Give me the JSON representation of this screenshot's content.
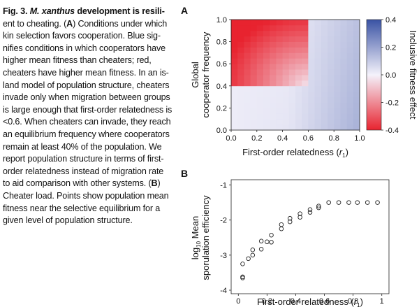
{
  "caption": {
    "fig_label": "Fig. 3.",
    "species": "M. xanthus",
    "lines": [
      [
        {
          "t": "Fig. 3. ",
          "s": "b"
        },
        {
          "t": "M. xanthus",
          "s": "bi"
        },
        {
          "t": " development is resili-",
          "s": "b"
        }
      ],
      [
        {
          "t": "ent to cheating. (",
          "s": ""
        },
        {
          "t": "A",
          "s": "b"
        },
        {
          "t": ") Conditions under which",
          "s": ""
        }
      ],
      [
        {
          "t": "kin selection favors cooperation. Blue sig-",
          "s": ""
        }
      ],
      [
        {
          "t": "nifies conditions in which cooperators have",
          "s": ""
        }
      ],
      [
        {
          "t": "higher mean fitness than cheaters; red,",
          "s": ""
        }
      ],
      [
        {
          "t": "cheaters have higher mean fitness. In an is-",
          "s": ""
        }
      ],
      [
        {
          "t": "land model of population structure, cheaters",
          "s": ""
        }
      ],
      [
        {
          "t": "invade only when migration between groups",
          "s": ""
        }
      ],
      [
        {
          "t": "is large enough that first-order relatedness is",
          "s": ""
        }
      ],
      [
        {
          "t": "<0.6. When cheaters can invade, they reach",
          "s": ""
        }
      ],
      [
        {
          "t": "an equilibrium frequency where cooperators",
          "s": ""
        }
      ],
      [
        {
          "t": "remain at least 40% of the population. We",
          "s": ""
        }
      ],
      [
        {
          "t": "report population structure in terms of first-",
          "s": ""
        }
      ],
      [
        {
          "t": "order relatedness instead of migration rate",
          "s": ""
        }
      ],
      [
        {
          "t": "to aid comparison with other systems. (",
          "s": ""
        },
        {
          "t": "B",
          "s": "b"
        },
        {
          "t": ")",
          "s": ""
        }
      ],
      [
        {
          "t": "Cheater load. Points show population mean",
          "s": ""
        }
      ],
      [
        {
          "t": "fitness near the selective equilibrium for a",
          "s": ""
        }
      ],
      [
        {
          "t": "given level of population structure.",
          "s": ""
        }
      ]
    ]
  },
  "chart_data": [
    {
      "panel": "A",
      "type": "heatmap",
      "xlabel": "First-order relatedness (r1)",
      "xlabel_main": "First-order relatedness (",
      "xlabel_var": "r",
      "xlabel_sub": "1",
      "xlabel_close": ")",
      "ylabel_lines": [
        "Global",
        "cooperator frequency"
      ],
      "xlim": [
        0,
        1
      ],
      "ylim": [
        0,
        1
      ],
      "xticks": [
        "0.0",
        "0.2",
        "0.4",
        "0.6",
        "0.8",
        "1.0"
      ],
      "yticks": [
        "0.0",
        "0.2",
        "0.4",
        "0.6",
        "0.8",
        "1.0"
      ],
      "grid_n": 20,
      "colorbar": {
        "label": "Inclusive fitness effect",
        "min": -0.4,
        "max": 0.4,
        "ticks": [
          "0.4",
          "0.2",
          "0.0",
          "-0.2",
          "-0.4"
        ],
        "high_color": "#3a53a4",
        "mid_color": "#f4f2fb",
        "low_color": "#e8232f"
      }
    },
    {
      "panel": "B",
      "type": "scatter",
      "xlabel": "First-order relatedness (r1)",
      "xlabel_main": "First-order relatedness (",
      "xlabel_var": "r",
      "xlabel_sub": "1",
      "xlabel_close": ")",
      "ylabel_lines": [
        "log10 Mean",
        "sporulation efficiency"
      ],
      "ylabel_l1_a": "log",
      "ylabel_l1_sub": "10",
      "ylabel_l1_b": " Mean",
      "ylabel_l2": "sporulation efficiency",
      "xlim": [
        -0.05,
        1.05
      ],
      "ylim": [
        -4.1,
        -0.85
      ],
      "xticks": [
        "0",
        "0.2",
        "0.4",
        "0.6",
        "0.8",
        "1"
      ],
      "yticks": [
        "-1",
        "-2",
        "-3",
        "-4"
      ],
      "points": [
        [
          0.03,
          -3.62
        ],
        [
          0.03,
          -3.65
        ],
        [
          0.03,
          -3.25
        ],
        [
          0.07,
          -3.1
        ],
        [
          0.1,
          -3.0
        ],
        [
          0.1,
          -2.85
        ],
        [
          0.16,
          -2.83
        ],
        [
          0.16,
          -2.6
        ],
        [
          0.2,
          -2.62
        ],
        [
          0.23,
          -2.63
        ],
        [
          0.23,
          -2.43
        ],
        [
          0.3,
          -2.25
        ],
        [
          0.3,
          -2.13
        ],
        [
          0.36,
          -2.05
        ],
        [
          0.36,
          -1.95
        ],
        [
          0.43,
          -1.92
        ],
        [
          0.43,
          -1.82
        ],
        [
          0.5,
          -1.78
        ],
        [
          0.5,
          -1.7
        ],
        [
          0.56,
          -1.65
        ],
        [
          0.56,
          -1.6
        ],
        [
          0.63,
          -1.5
        ],
        [
          0.7,
          -1.5
        ],
        [
          0.77,
          -1.5
        ],
        [
          0.83,
          -1.5
        ],
        [
          0.9,
          -1.5
        ],
        [
          0.97,
          -1.5
        ]
      ]
    }
  ]
}
